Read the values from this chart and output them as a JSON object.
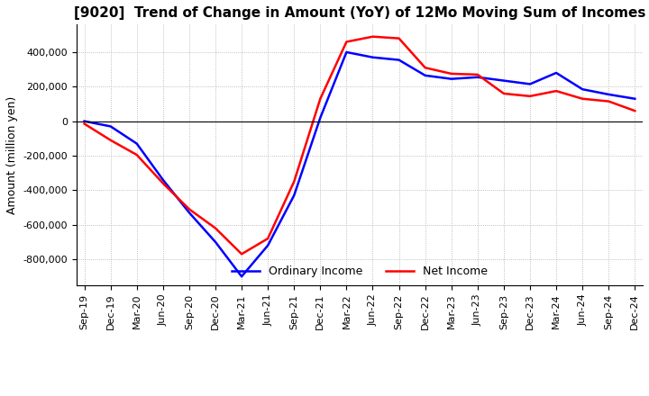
{
  "title": "[9020]  Trend of Change in Amount (YoY) of 12Mo Moving Sum of Incomes",
  "ylabel": "Amount (million yen)",
  "ylim": [
    -950000,
    560000
  ],
  "yticks": [
    -800000,
    -600000,
    -400000,
    -200000,
    0,
    200000,
    400000
  ],
  "x_labels": [
    "Sep-19",
    "Dec-19",
    "Mar-20",
    "Jun-20",
    "Sep-20",
    "Dec-20",
    "Mar-21",
    "Jun-21",
    "Sep-21",
    "Dec-21",
    "Mar-22",
    "Jun-22",
    "Sep-22",
    "Dec-22",
    "Mar-23",
    "Jun-23",
    "Sep-23",
    "Dec-23",
    "Mar-24",
    "Jun-24",
    "Sep-24",
    "Dec-24"
  ],
  "ordinary_income": [
    0,
    -30000,
    -130000,
    -340000,
    -530000,
    -700000,
    -900000,
    -720000,
    -430000,
    20000,
    400000,
    370000,
    355000,
    265000,
    245000,
    255000,
    235000,
    215000,
    280000,
    185000,
    155000,
    130000
  ],
  "net_income": [
    -15000,
    -110000,
    -195000,
    -360000,
    -510000,
    -620000,
    -770000,
    -680000,
    -350000,
    130000,
    460000,
    490000,
    480000,
    310000,
    275000,
    270000,
    160000,
    145000,
    175000,
    130000,
    115000,
    60000
  ],
  "ordinary_color": "#0000ff",
  "net_color": "#ff0000",
  "line_width": 1.8,
  "background_color": "#ffffff",
  "grid_color": "#aaaaaa",
  "title_fontsize": 11,
  "label_fontsize": 9,
  "tick_fontsize": 8
}
